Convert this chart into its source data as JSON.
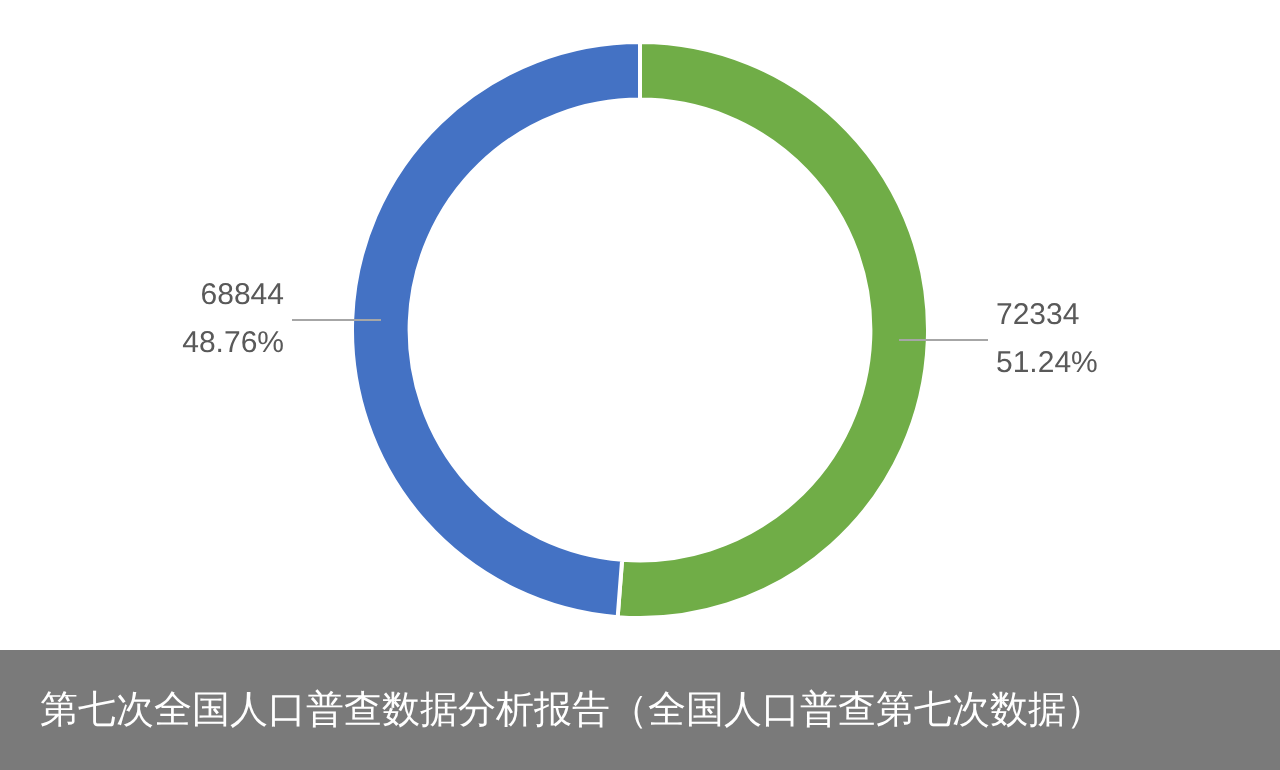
{
  "chart_data": {
    "type": "donut",
    "title": "第七次全国人口普查数据分析报告（全国人口普查第七次数据）",
    "categories": [
      null,
      null
    ],
    "values": [
      72334,
      68844
    ],
    "colors": [
      "#70ad47",
      "#4472c4"
    ],
    "value_labels": [
      "72334\n51.24%",
      "68844\n48.76%"
    ],
    "legend": false
  }
}
